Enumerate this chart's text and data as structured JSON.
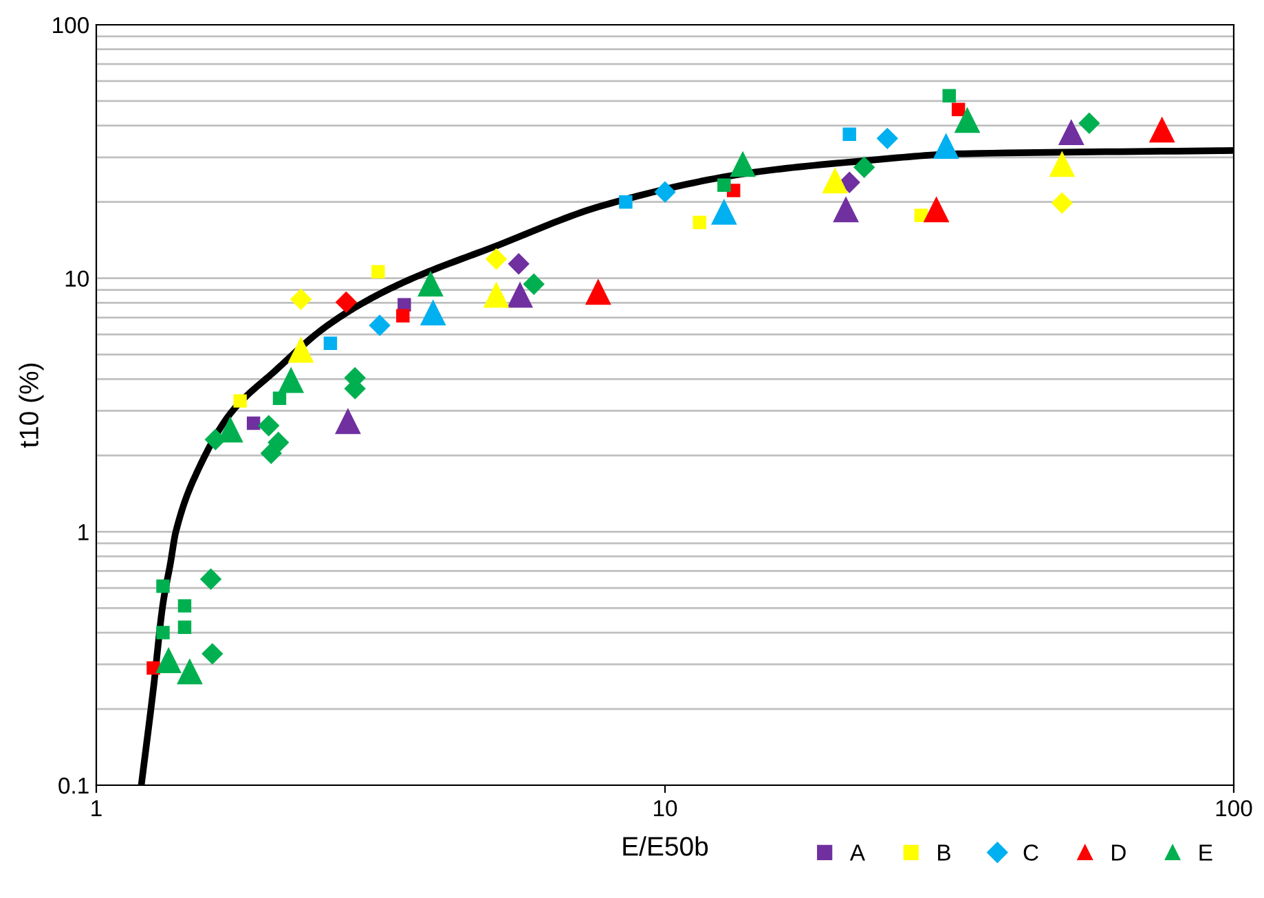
{
  "chart_data": {
    "type": "scatter",
    "xlabel": "E/E50b",
    "ylabel": "t10 (%)",
    "log": "xy",
    "xlim": [
      1,
      100
    ],
    "xticks": [
      1,
      10,
      100
    ],
    "ylim": [
      0.1,
      100
    ],
    "yticks": [
      0.1,
      {
        "value": 0.2,
        "label": null
      },
      {
        "value": 0.3,
        "label": null
      },
      {
        "value": 0.4,
        "label": null
      },
      {
        "value": 0.5,
        "label": null
      },
      {
        "value": 0.6,
        "label": null
      },
      {
        "value": 0.7,
        "label": null
      },
      {
        "value": 0.8,
        "label": null
      },
      {
        "value": 0.9,
        "label": null
      },
      1,
      {
        "value": 2,
        "label": null
      },
      {
        "value": 3,
        "label": null
      },
      {
        "value": 4,
        "label": null
      },
      {
        "value": 5,
        "label": null
      },
      {
        "value": 6,
        "label": null
      },
      {
        "value": 7,
        "label": null
      },
      {
        "value": 8,
        "label": null
      },
      {
        "value": 9,
        "label": null
      },
      10,
      {
        "value": 20,
        "label": null
      },
      {
        "value": 30,
        "label": null
      },
      {
        "value": 40,
        "label": null
      },
      {
        "value": 50,
        "label": null
      },
      {
        "value": 60,
        "label": null
      },
      {
        "value": 70,
        "label": null
      },
      {
        "value": 80,
        "label": null
      },
      {
        "value": 90,
        "label": null
      },
      100
    ],
    "grid": "y",
    "legend": "bottom right",
    "series": [
      {
        "type": "line",
        "color": "#000000",
        "marker": "none",
        "line_style": "solid",
        "x": [
          1.2,
          1.26,
          1.31,
          1.35,
          1.38,
          1.48,
          1.73,
          2.06,
          2.5,
          2.96,
          3.6,
          5.0,
          7.8,
          13.7,
          21.4,
          33.5,
          100
        ],
        "values": [
          0.1,
          0.24,
          0.52,
          0.75,
          1.0,
          1.59,
          2.97,
          4.3,
          6.3,
          8.05,
          10,
          13.3,
          19.4,
          25.8,
          28.8,
          31,
          31.9
        ]
      },
      {
        "name": "A",
        "color": "#7030a0",
        "marker": "square",
        "x": [
          1.89,
          3.48
        ],
        "values": [
          2.68,
          7.86
        ]
      },
      {
        "color": "#7030a0",
        "marker": "diamond",
        "x": [
          5.53,
          21.1
        ],
        "values": [
          11.4,
          23.9
        ]
      },
      {
        "color": "#7030a0",
        "marker": "triangle",
        "x": [
          2.77,
          5.56,
          20.8,
          51.8
        ],
        "values": [
          2.72,
          8.57,
          18.6,
          37.5
        ]
      },
      {
        "name": "B",
        "color": "#ffff00",
        "marker": "square",
        "x": [
          1.79,
          3.13,
          11.5,
          28.2
        ],
        "values": [
          3.28,
          10.6,
          16.6,
          17.7
        ]
      },
      {
        "color": "#ffff00",
        "marker": "diamond",
        "x": [
          2.29,
          5.05,
          49.9
        ],
        "values": [
          8.26,
          11.9,
          19.8
        ]
      },
      {
        "color": "#ffff00",
        "marker": "triangle",
        "x": [
          2.29,
          5.05,
          19.9,
          49.9
        ],
        "values": [
          5.2,
          8.57,
          24.2,
          28.1
        ]
      },
      {
        "color": "#00b0f0",
        "marker": "square",
        "x": [
          2.58,
          8.53,
          21.1
        ],
        "values": [
          5.54,
          20.0,
          37.0
        ]
      },
      {
        "name": "C",
        "color": "#00b0f0",
        "marker": "diamond",
        "x": [
          3.15,
          10.0,
          24.6
        ],
        "values": [
          6.52,
          21.9,
          35.6
        ]
      },
      {
        "color": "#00b0f0",
        "marker": "triangle",
        "x": [
          3.91,
          12.7,
          31.2
        ],
        "values": [
          7.29,
          18.2,
          33.1
        ]
      },
      {
        "color": "#ff0000",
        "marker": "square",
        "x": [
          1.26,
          3.46,
          13.2,
          32.8
        ],
        "values": [
          0.29,
          7.11,
          22.2,
          46.3
        ]
      },
      {
        "color": "#ff0000",
        "marker": "diamond",
        "x": [
          2.75
        ],
        "values": [
          8.05
        ]
      },
      {
        "name": "D",
        "color": "#ff0000",
        "marker": "triangle",
        "x": [
          7.63,
          30.0,
          74.8
        ],
        "values": [
          8.8,
          18.6,
          38.4
        ]
      },
      {
        "color": "#00b050",
        "marker": "square",
        "x": [
          1.31,
          1.43,
          1.43,
          1.31,
          2.1,
          12.7,
          31.6
        ],
        "values": [
          0.61,
          0.51,
          0.42,
          0.4,
          3.36,
          23.3,
          52.5
        ]
      },
      {
        "color": "#00b050",
        "marker": "diamond",
        "x": [
          1.59,
          1.6,
          1.62,
          2.01,
          2.09,
          2.03,
          2.85,
          2.85,
          5.88,
          22.4,
          55.7
        ],
        "values": [
          0.65,
          0.33,
          2.31,
          2.62,
          2.25,
          2.04,
          4.05,
          3.67,
          9.48,
          27.4,
          40.9
        ]
      },
      {
        "name": "E",
        "color": "#00b050",
        "marker": "triangle",
        "x": [
          1.34,
          1.46,
          1.72,
          2.2,
          3.87,
          13.7,
          34.0
        ],
        "values": [
          0.31,
          0.28,
          2.52,
          3.95,
          9.48,
          28.1,
          41.9
        ]
      }
    ]
  }
}
